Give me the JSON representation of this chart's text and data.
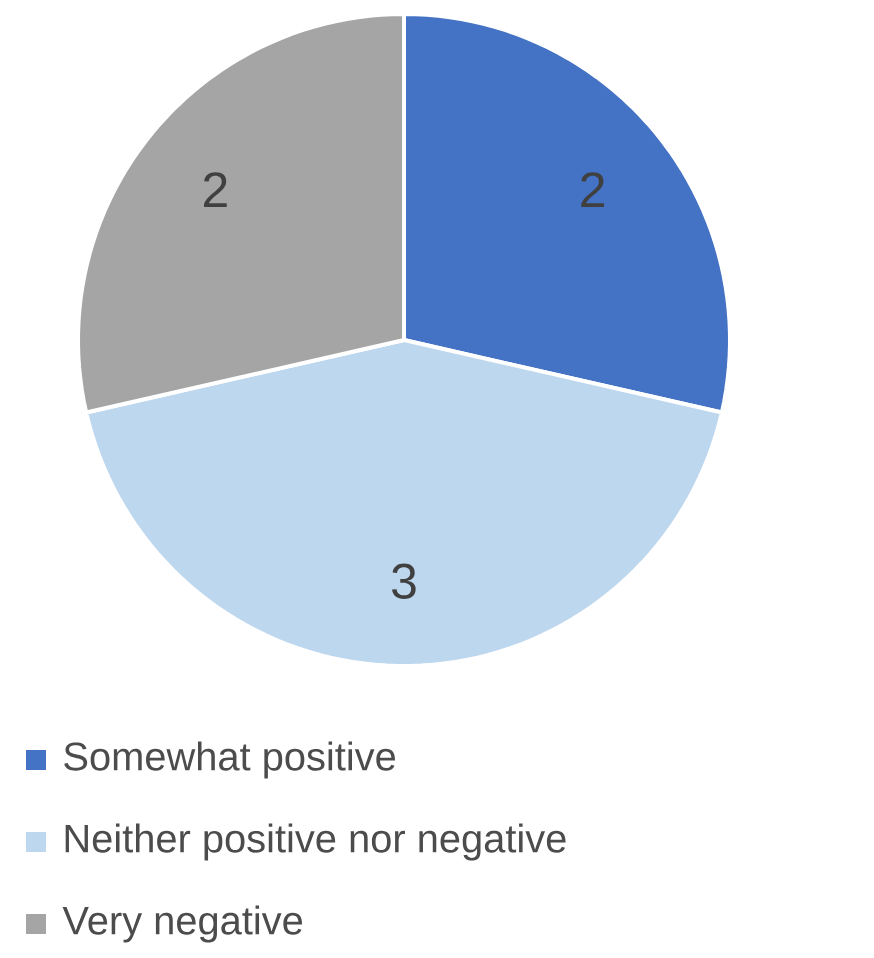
{
  "chart_data": {
    "type": "pie",
    "categories": [
      "Somewhat positive",
      "Neither positive nor negative",
      "Very negative"
    ],
    "values": [
      2,
      3,
      2
    ],
    "colors": [
      "#4472c4",
      "#bdd7ee",
      "#a5a5a5"
    ],
    "data_labels": true,
    "legend": "bottom"
  }
}
